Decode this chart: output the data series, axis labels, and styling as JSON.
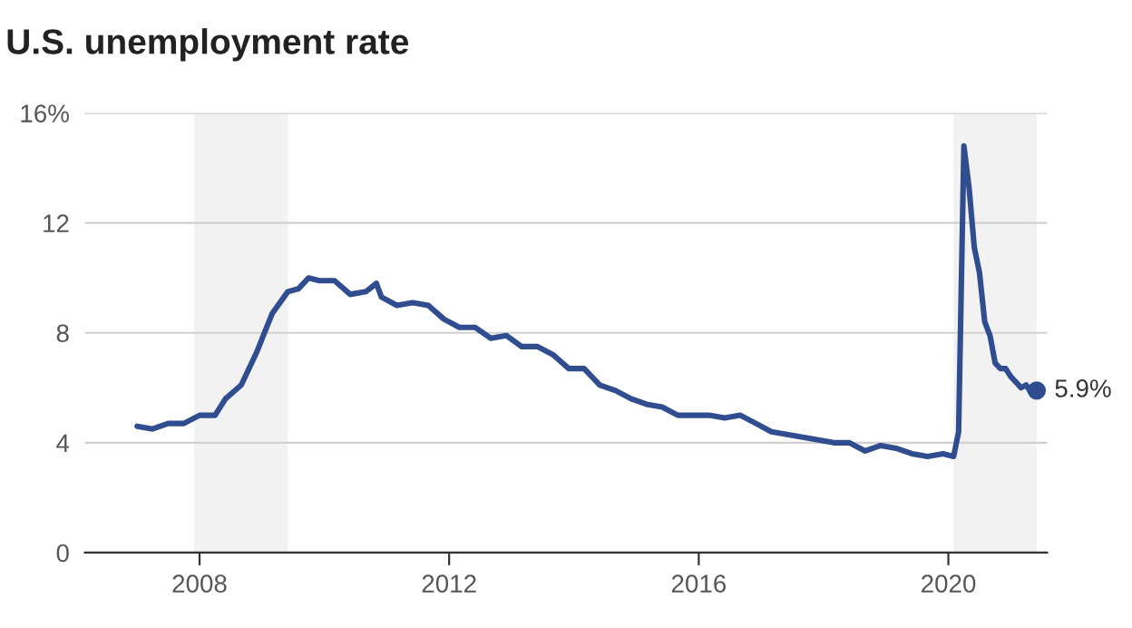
{
  "chart_data": {
    "type": "line",
    "title": "U.S. unemployment rate",
    "x": [
      "2007-01",
      "2007-04",
      "2007-07",
      "2007-10",
      "2008-01",
      "2008-04",
      "2008-06",
      "2008-09",
      "2008-12",
      "2009-03",
      "2009-06",
      "2009-08",
      "2009-10",
      "2009-12",
      "2010-03",
      "2010-06",
      "2010-09",
      "2010-11",
      "2010-12",
      "2011-03",
      "2011-06",
      "2011-09",
      "2011-12",
      "2012-03",
      "2012-06",
      "2012-09",
      "2012-12",
      "2013-03",
      "2013-06",
      "2013-09",
      "2013-12",
      "2014-03",
      "2014-06",
      "2014-09",
      "2014-12",
      "2015-03",
      "2015-06",
      "2015-09",
      "2015-12",
      "2016-03",
      "2016-06",
      "2016-09",
      "2016-12",
      "2017-03",
      "2017-06",
      "2017-09",
      "2017-12",
      "2018-03",
      "2018-06",
      "2018-09",
      "2018-12",
      "2019-03",
      "2019-06",
      "2019-09",
      "2019-12",
      "2020-02",
      "2020-03",
      "2020-04",
      "2020-05",
      "2020-06",
      "2020-07",
      "2020-08",
      "2020-09",
      "2020-10",
      "2020-11",
      "2020-12",
      "2021-01",
      "2021-02",
      "2021-03",
      "2021-04",
      "2021-05",
      "2021-06"
    ],
    "series": [
      {
        "color": "#2f4d8f",
        "values": [
          4.6,
          4.5,
          4.7,
          4.7,
          5.0,
          5.0,
          5.6,
          6.1,
          7.3,
          8.7,
          9.5,
          9.6,
          10.0,
          9.9,
          9.9,
          9.4,
          9.5,
          9.8,
          9.3,
          9.0,
          9.1,
          9.0,
          8.5,
          8.2,
          8.2,
          7.8,
          7.9,
          7.5,
          7.5,
          7.2,
          6.7,
          6.7,
          6.1,
          5.9,
          5.6,
          5.4,
          5.3,
          5.0,
          5.0,
          5.0,
          4.9,
          5.0,
          4.7,
          4.4,
          4.3,
          4.2,
          4.1,
          4.0,
          4.0,
          3.7,
          3.9,
          3.8,
          3.6,
          3.5,
          3.6,
          3.5,
          4.4,
          14.8,
          13.3,
          11.1,
          10.2,
          8.4,
          7.9,
          6.9,
          6.7,
          6.7,
          6.4,
          6.2,
          6.0,
          6.1,
          5.8,
          5.9
        ]
      },
      {
        "type": "scatter",
        "color": "#2f4d8f",
        "x": [
          "2021-06"
        ],
        "values": [
          5.9
        ]
      }
    ],
    "annotations": [
      {
        "text": "5.9%",
        "x": "2021-06",
        "y": 5.9
      }
    ],
    "bands": [
      {
        "axis": "x",
        "from": "2007-12",
        "to": "2009-06",
        "color": "#f2f2f2"
      },
      {
        "axis": "x",
        "from": "2020-02",
        "to": "2021-06",
        "color": "#f2f2f2"
      }
    ],
    "xlim": [
      "2006-03",
      "2021-08"
    ],
    "xticks": [
      {
        "value": "2008",
        "label": "2008"
      },
      {
        "value": "2012",
        "label": "2012"
      },
      {
        "value": "2016",
        "label": "2016"
      },
      {
        "value": "2020",
        "label": "2020"
      }
    ],
    "ylim": [
      0,
      16
    ],
    "yticks": [
      0,
      4,
      8,
      12,
      {
        "value": 16,
        "label": "16%"
      }
    ],
    "grid": "y"
  }
}
